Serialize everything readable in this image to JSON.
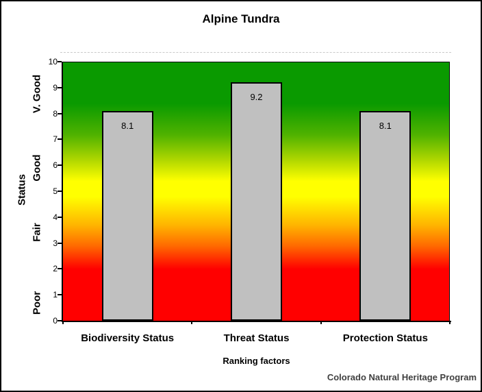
{
  "title": "Alpine Tundra",
  "chart_data": {
    "type": "bar",
    "title": "Alpine Tundra",
    "categories": [
      "Biodiversity Status",
      "Threat Status",
      "Protection Status"
    ],
    "values": [
      8.1,
      9.2,
      8.1
    ],
    "bar_labels": [
      "8.1",
      "9.2",
      "8.1"
    ],
    "xlabel": "Ranking factors",
    "ylabel": "Status",
    "ylim": [
      0,
      10
    ],
    "yticks": [
      0,
      1,
      2,
      3,
      4,
      5,
      6,
      7,
      8,
      9,
      10
    ],
    "grid": false,
    "legend": false,
    "bar_color": "#c0c0c0",
    "bar_border_color": "#000000",
    "zone_labels": [
      {
        "label": "V. Good",
        "center_value": 8.75
      },
      {
        "label": "Good",
        "center_value": 5.9
      },
      {
        "label": "Fair",
        "center_value": 3.4
      },
      {
        "label": "Poor",
        "center_value": 0.7
      }
    ],
    "background_gradient_stops": [
      {
        "color": "#0a9a00",
        "pos": 0
      },
      {
        "color": "#0a9a00",
        "pos": 16
      },
      {
        "color": "#4fb200",
        "pos": 28
      },
      {
        "color": "#b2d800",
        "pos": 38
      },
      {
        "color": "#ffff00",
        "pos": 46
      },
      {
        "color": "#ffff00",
        "pos": 52
      },
      {
        "color": "#ffb400",
        "pos": 63
      },
      {
        "color": "#ff6a00",
        "pos": 71
      },
      {
        "color": "#ff0000",
        "pos": 80
      },
      {
        "color": "#ff0000",
        "pos": 100
      }
    ]
  },
  "footer": {
    "credit": "Colorado Natural Heritage Program"
  }
}
